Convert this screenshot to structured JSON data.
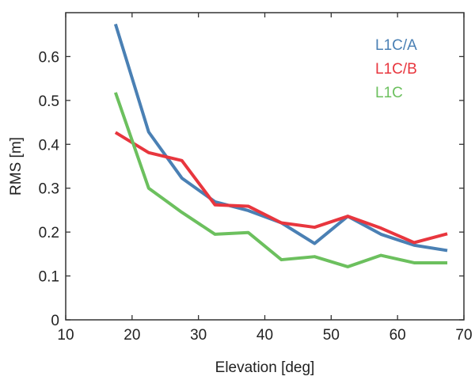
{
  "chart_data": {
    "type": "line",
    "title": "",
    "xlabel": "Elevation [deg]",
    "ylabel": "RMS [m]",
    "xlim": [
      10,
      70
    ],
    "ylim": [
      0,
      0.7
    ],
    "xticks": [
      "10",
      "20",
      "30",
      "40",
      "50",
      "60",
      "70"
    ],
    "yticks": [
      "0",
      "0.1",
      "0.2",
      "0.3",
      "0.4",
      "0.5",
      "0.6"
    ],
    "grid": false,
    "legend_position": "top-right",
    "x": [
      17.5,
      22.5,
      27.5,
      32.5,
      37.5,
      42.5,
      47.5,
      52.5,
      57.5,
      62.5,
      67.5
    ],
    "series": [
      {
        "name": "L1C/A",
        "color": "#4a80b4",
        "values": [
          0.674,
          0.428,
          0.323,
          0.269,
          0.249,
          0.221,
          0.174,
          0.236,
          0.195,
          0.17,
          0.158
        ]
      },
      {
        "name": "L1C/B",
        "color": "#e8363e",
        "values": [
          0.427,
          0.381,
          0.363,
          0.262,
          0.259,
          0.221,
          0.211,
          0.236,
          0.209,
          0.176,
          0.196
        ]
      },
      {
        "name": "L1C",
        "color": "#6cc05e",
        "values": [
          0.518,
          0.3,
          0.245,
          0.195,
          0.199,
          0.137,
          0.144,
          0.121,
          0.147,
          0.13,
          0.13
        ]
      }
    ]
  }
}
